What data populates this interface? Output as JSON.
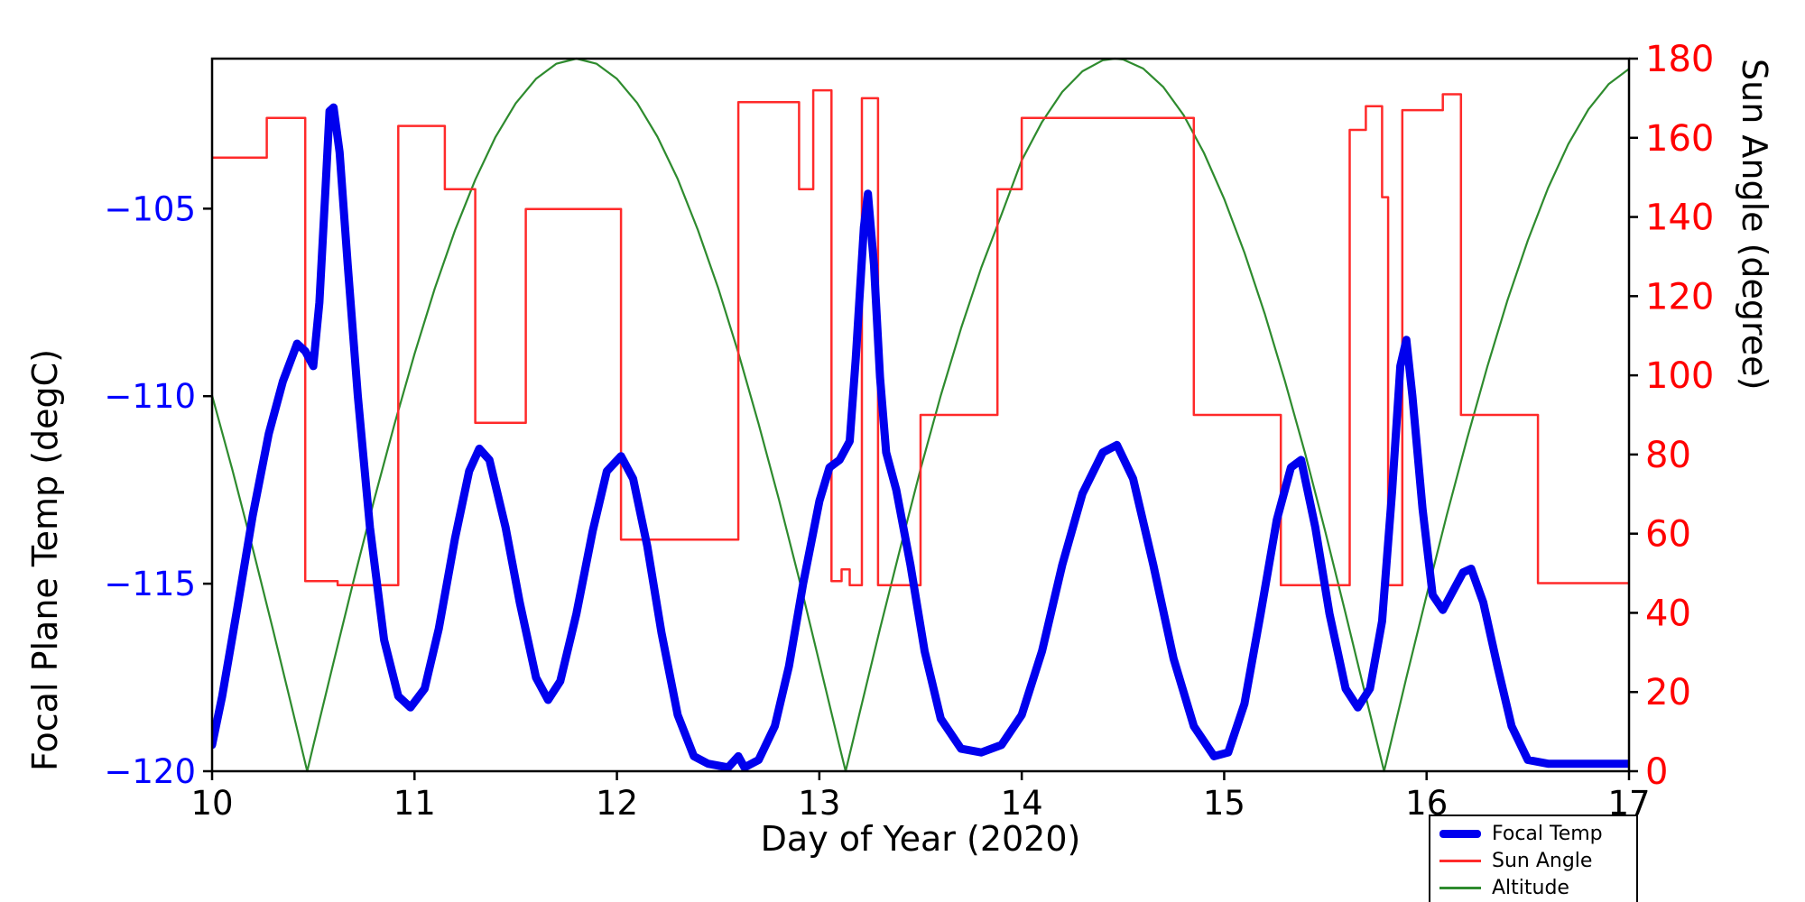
{
  "figure": {
    "background": "#ffffff"
  },
  "chart_data": {
    "type": "line",
    "title": "",
    "xlabel": "Day of Year (2020)",
    "ylabel_left": "Focal Plane Temp (degC)",
    "ylabel_right": "Sun Angle (degree)",
    "xlim": [
      10,
      17
    ],
    "ylim_left": [
      -120,
      -101
    ],
    "ylim_right": [
      0,
      180
    ],
    "xticks": [
      10,
      11,
      12,
      13,
      14,
      15,
      16,
      17
    ],
    "yticks_left": [
      -105,
      -110,
      -115,
      -120
    ],
    "yticks_right": [
      0,
      20,
      40,
      60,
      80,
      100,
      120,
      140,
      160,
      180
    ],
    "grid": false,
    "colors": {
      "frame": "#000000",
      "x_tick_label": "#000000",
      "left_tick_label": "#0000ff",
      "right_tick_label": "#ff0000",
      "focal_temp": "#0000ee",
      "sun_angle": "#ff2a2a",
      "altitude": "#2e8b2e"
    },
    "legend": {
      "position": "lower-right-outside",
      "entries": [
        {
          "label": "Focal Temp",
          "color": "#0000ee",
          "width": 9
        },
        {
          "label": "Sun Angle",
          "color": "#ff2a2a",
          "width": 2.5
        },
        {
          "label": "Altitude",
          "color": "#2e8b2e",
          "width": 2.5
        }
      ]
    },
    "series": [
      {
        "name": "Altitude",
        "axis": "right",
        "color": "#2e8b2e",
        "width": 2.2,
        "points": [
          [
            10.0,
            94.9
          ],
          [
            10.1,
            76.2
          ],
          [
            10.2,
            56.4
          ],
          [
            10.3,
            35.9
          ],
          [
            10.4,
            14.9
          ],
          [
            10.47,
            0.0
          ],
          [
            10.5,
            6.4
          ],
          [
            10.6,
            27.5
          ],
          [
            10.7,
            48.3
          ],
          [
            10.8,
            68.4
          ],
          [
            10.9,
            87.5
          ],
          [
            11.0,
            105.4
          ],
          [
            11.1,
            121.9
          ],
          [
            11.2,
            136.6
          ],
          [
            11.3,
            149.4
          ],
          [
            11.4,
            160.2
          ],
          [
            11.5,
            168.7
          ],
          [
            11.6,
            174.9
          ],
          [
            11.7,
            178.7
          ],
          [
            11.8,
            180.0
          ],
          [
            11.9,
            178.7
          ],
          [
            12.0,
            174.9
          ],
          [
            12.1,
            168.8
          ],
          [
            12.2,
            160.3
          ],
          [
            12.3,
            149.6
          ],
          [
            12.4,
            136.7
          ],
          [
            12.5,
            122.1
          ],
          [
            12.6,
            105.7
          ],
          [
            12.7,
            87.7
          ],
          [
            12.8,
            68.7
          ],
          [
            12.9,
            48.6
          ],
          [
            13.0,
            27.4
          ],
          [
            13.1,
            6.2
          ],
          [
            13.13,
            0.0
          ],
          [
            13.2,
            14.9
          ],
          [
            13.3,
            36.0
          ],
          [
            13.4,
            56.4
          ],
          [
            13.5,
            76.3
          ],
          [
            13.6,
            94.9
          ],
          [
            13.7,
            111.9
          ],
          [
            13.8,
            127.2
          ],
          [
            13.9,
            140.6
          ],
          [
            14.0,
            154.3
          ],
          [
            14.1,
            164.0
          ],
          [
            14.2,
            171.6
          ],
          [
            14.3,
            176.8
          ],
          [
            14.4,
            179.6
          ],
          [
            14.46,
            180.0
          ],
          [
            14.5,
            179.8
          ],
          [
            14.6,
            177.5
          ],
          [
            14.7,
            172.8
          ],
          [
            14.8,
            165.7
          ],
          [
            14.9,
            156.2
          ],
          [
            15.0,
            144.6
          ],
          [
            15.1,
            131.0
          ],
          [
            15.2,
            115.6
          ],
          [
            15.3,
            98.6
          ],
          [
            15.4,
            80.3
          ],
          [
            15.5,
            60.4
          ],
          [
            15.6,
            39.8
          ],
          [
            15.7,
            18.8
          ],
          [
            15.79,
            0.0
          ],
          [
            15.9,
            23.6
          ],
          [
            16.0,
            44.4
          ],
          [
            16.1,
            64.7
          ],
          [
            16.2,
            84.0
          ],
          [
            16.3,
            102.2
          ],
          [
            16.4,
            119.0
          ],
          [
            16.5,
            134.1
          ],
          [
            16.6,
            147.3
          ],
          [
            16.7,
            158.4
          ],
          [
            16.8,
            167.2
          ],
          [
            16.9,
            173.6
          ],
          [
            17.0,
            177.4
          ]
        ]
      },
      {
        "name": "Sun Angle",
        "axis": "right",
        "color": "#ff2a2a",
        "width": 2.5,
        "points": [
          [
            10.0,
            155
          ],
          [
            10.27,
            155
          ],
          [
            10.27,
            165
          ],
          [
            10.46,
            165
          ],
          [
            10.46,
            48
          ],
          [
            10.62,
            48
          ],
          [
            10.62,
            47
          ],
          [
            10.92,
            47
          ],
          [
            10.92,
            163
          ],
          [
            11.15,
            163
          ],
          [
            11.15,
            147
          ],
          [
            11.3,
            147
          ],
          [
            11.3,
            88
          ],
          [
            11.55,
            88
          ],
          [
            11.55,
            142
          ],
          [
            12.02,
            142
          ],
          [
            12.02,
            58.5
          ],
          [
            12.6,
            58.5
          ],
          [
            12.6,
            169
          ],
          [
            12.9,
            169
          ],
          [
            12.9,
            147
          ],
          [
            12.97,
            147
          ],
          [
            12.97,
            172
          ],
          [
            13.06,
            172
          ],
          [
            13.06,
            48
          ],
          [
            13.11,
            48
          ],
          [
            13.11,
            51
          ],
          [
            13.15,
            51
          ],
          [
            13.15,
            47
          ],
          [
            13.21,
            47
          ],
          [
            13.21,
            170
          ],
          [
            13.29,
            170
          ],
          [
            13.29,
            47
          ],
          [
            13.5,
            47
          ],
          [
            13.5,
            90
          ],
          [
            13.88,
            90
          ],
          [
            13.88,
            147
          ],
          [
            14.0,
            147
          ],
          [
            14.0,
            165
          ],
          [
            14.85,
            165
          ],
          [
            14.85,
            90
          ],
          [
            15.28,
            90
          ],
          [
            15.28,
            47
          ],
          [
            15.62,
            47
          ],
          [
            15.62,
            162
          ],
          [
            15.7,
            162
          ],
          [
            15.7,
            168
          ],
          [
            15.78,
            168
          ],
          [
            15.78,
            145
          ],
          [
            15.81,
            145
          ],
          [
            15.81,
            47
          ],
          [
            15.88,
            47
          ],
          [
            15.88,
            167
          ],
          [
            16.08,
            167
          ],
          [
            16.08,
            171
          ],
          [
            16.17,
            171
          ],
          [
            16.17,
            90
          ],
          [
            16.55,
            90
          ],
          [
            16.55,
            47.5
          ],
          [
            17.0,
            47.5
          ]
        ]
      },
      {
        "name": "Focal Temp",
        "axis": "left",
        "color": "#0000ee",
        "width": 9,
        "points": [
          [
            10.0,
            -119.3
          ],
          [
            10.05,
            -118.0
          ],
          [
            10.12,
            -115.8
          ],
          [
            10.2,
            -113.2
          ],
          [
            10.28,
            -111.0
          ],
          [
            10.35,
            -109.6
          ],
          [
            10.42,
            -108.6
          ],
          [
            10.46,
            -108.8
          ],
          [
            10.5,
            -109.2
          ],
          [
            10.53,
            -107.5
          ],
          [
            10.56,
            -104.5
          ],
          [
            10.58,
            -102.4
          ],
          [
            10.6,
            -102.3
          ],
          [
            10.63,
            -103.5
          ],
          [
            10.67,
            -106.5
          ],
          [
            10.72,
            -110.0
          ],
          [
            10.78,
            -113.5
          ],
          [
            10.85,
            -116.5
          ],
          [
            10.92,
            -118.0
          ],
          [
            10.98,
            -118.3
          ],
          [
            11.05,
            -117.8
          ],
          [
            11.12,
            -116.2
          ],
          [
            11.2,
            -113.8
          ],
          [
            11.27,
            -112.0
          ],
          [
            11.32,
            -111.4
          ],
          [
            11.37,
            -111.7
          ],
          [
            11.45,
            -113.5
          ],
          [
            11.52,
            -115.5
          ],
          [
            11.6,
            -117.5
          ],
          [
            11.66,
            -118.1
          ],
          [
            11.72,
            -117.6
          ],
          [
            11.8,
            -115.8
          ],
          [
            11.88,
            -113.6
          ],
          [
            11.95,
            -112.0
          ],
          [
            12.02,
            -111.6
          ],
          [
            12.08,
            -112.2
          ],
          [
            12.15,
            -114.0
          ],
          [
            12.22,
            -116.3
          ],
          [
            12.3,
            -118.5
          ],
          [
            12.38,
            -119.6
          ],
          [
            12.45,
            -119.8
          ],
          [
            12.55,
            -119.9
          ],
          [
            12.6,
            -119.6
          ],
          [
            12.63,
            -119.9
          ],
          [
            12.7,
            -119.7
          ],
          [
            12.78,
            -118.8
          ],
          [
            12.85,
            -117.2
          ],
          [
            12.92,
            -115.0
          ],
          [
            13.0,
            -112.8
          ],
          [
            13.05,
            -111.9
          ],
          [
            13.1,
            -111.7
          ],
          [
            13.15,
            -111.2
          ],
          [
            13.18,
            -109.0
          ],
          [
            13.22,
            -105.5
          ],
          [
            13.24,
            -104.6
          ],
          [
            13.27,
            -106.5
          ],
          [
            13.3,
            -109.5
          ],
          [
            13.33,
            -111.5
          ],
          [
            13.38,
            -112.5
          ],
          [
            13.45,
            -114.5
          ],
          [
            13.52,
            -116.8
          ],
          [
            13.6,
            -118.6
          ],
          [
            13.7,
            -119.4
          ],
          [
            13.8,
            -119.5
          ],
          [
            13.9,
            -119.3
          ],
          [
            14.0,
            -118.5
          ],
          [
            14.1,
            -116.8
          ],
          [
            14.2,
            -114.5
          ],
          [
            14.3,
            -112.6
          ],
          [
            14.4,
            -111.5
          ],
          [
            14.47,
            -111.3
          ],
          [
            14.55,
            -112.2
          ],
          [
            14.65,
            -114.5
          ],
          [
            14.75,
            -117.0
          ],
          [
            14.85,
            -118.8
          ],
          [
            14.95,
            -119.6
          ],
          [
            15.02,
            -119.5
          ],
          [
            15.1,
            -118.2
          ],
          [
            15.18,
            -115.8
          ],
          [
            15.26,
            -113.3
          ],
          [
            15.33,
            -111.9
          ],
          [
            15.38,
            -111.7
          ],
          [
            15.45,
            -113.5
          ],
          [
            15.52,
            -115.8
          ],
          [
            15.6,
            -117.8
          ],
          [
            15.66,
            -118.3
          ],
          [
            15.72,
            -117.8
          ],
          [
            15.78,
            -116.0
          ],
          [
            15.83,
            -112.5
          ],
          [
            15.87,
            -109.2
          ],
          [
            15.9,
            -108.5
          ],
          [
            15.93,
            -110.0
          ],
          [
            15.98,
            -113.0
          ],
          [
            16.03,
            -115.3
          ],
          [
            16.08,
            -115.7
          ],
          [
            16.13,
            -115.2
          ],
          [
            16.18,
            -114.7
          ],
          [
            16.22,
            -114.6
          ],
          [
            16.28,
            -115.5
          ],
          [
            16.35,
            -117.2
          ],
          [
            16.42,
            -118.8
          ],
          [
            16.5,
            -119.7
          ],
          [
            16.6,
            -119.8
          ],
          [
            16.8,
            -119.8
          ],
          [
            17.0,
            -119.8
          ]
        ]
      }
    ]
  }
}
